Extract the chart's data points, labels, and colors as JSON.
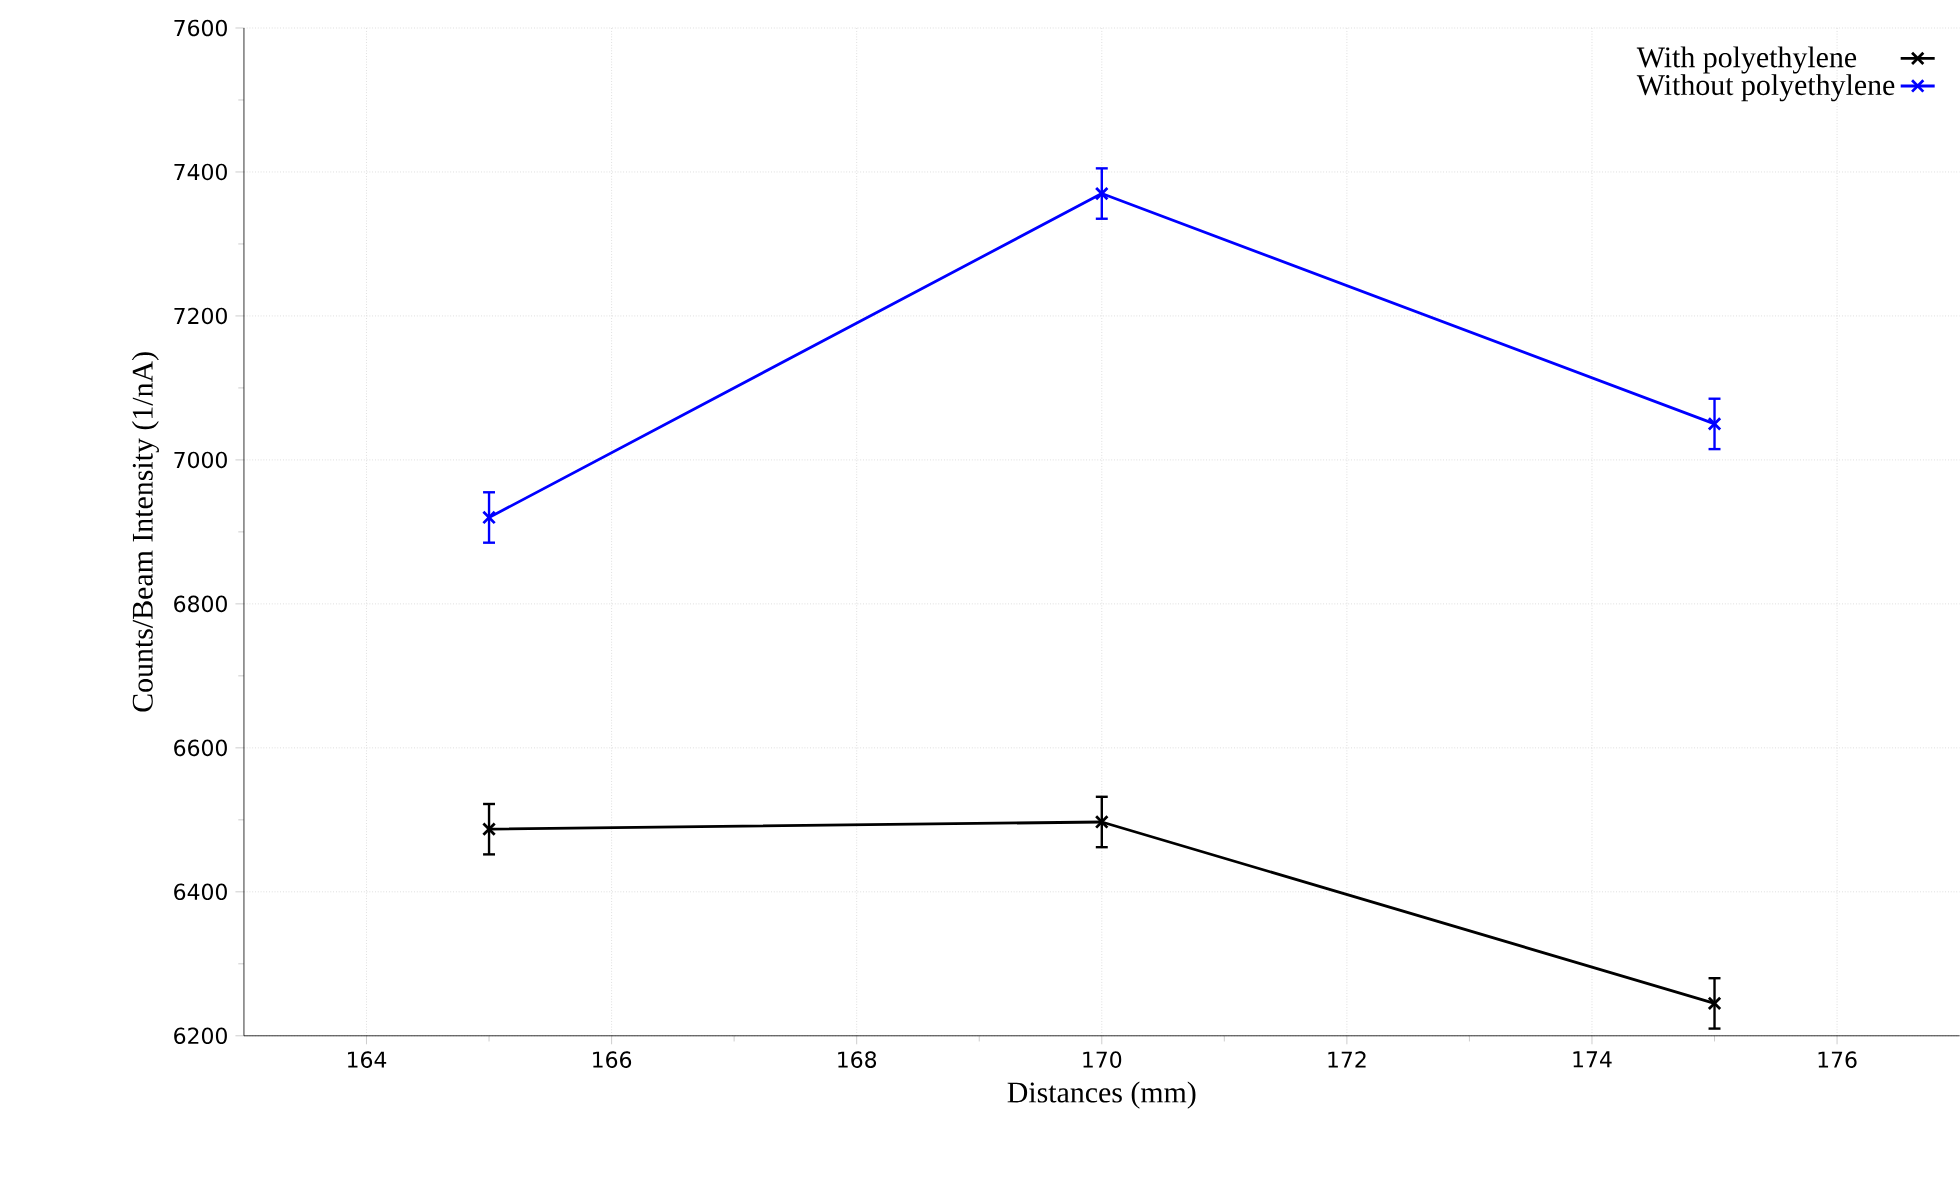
{
  "chart_data": {
    "type": "line",
    "xlabel": "Distances (mm)",
    "ylabel": "Counts/Beam Intensity (1/nA)",
    "x": [
      165,
      170,
      175
    ],
    "series": [
      {
        "name": "With polyethylene",
        "color": "#000000",
        "values": [
          6487,
          6497,
          6245
        ],
        "errors": [
          35,
          35,
          35
        ]
      },
      {
        "name": "Without polyethylene",
        "color": "#0000ff",
        "values": [
          6920,
          7370,
          7050
        ],
        "errors": [
          35,
          35,
          35
        ]
      }
    ],
    "xlim": [
      163,
      177
    ],
    "ylim": [
      6200,
      7600
    ],
    "xticks": [
      164,
      166,
      168,
      170,
      172,
      174,
      176
    ],
    "yticks": [
      6200,
      6400,
      6600,
      6800,
      7000,
      7200,
      7400,
      7600
    ],
    "grid": true,
    "legend": "top right",
    "marker": "cross",
    "line_style": "solid"
  }
}
